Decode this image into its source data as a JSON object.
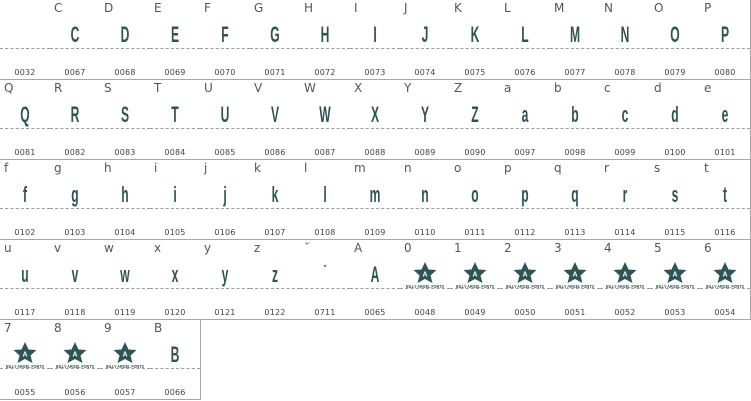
{
  "cells": [
    {
      "label": "",
      "glyph": "",
      "code": "0032",
      "kind": "char"
    },
    {
      "label": "C",
      "glyph": "C",
      "code": "0067",
      "kind": "char"
    },
    {
      "label": "D",
      "glyph": "D",
      "code": "0068",
      "kind": "char"
    },
    {
      "label": "E",
      "glyph": "E",
      "code": "0069",
      "kind": "char"
    },
    {
      "label": "F",
      "glyph": "F",
      "code": "0070",
      "kind": "char"
    },
    {
      "label": "G",
      "glyph": "G",
      "code": "0071",
      "kind": "char"
    },
    {
      "label": "H",
      "glyph": "H",
      "code": "0072",
      "kind": "char"
    },
    {
      "label": "I",
      "glyph": "I",
      "code": "0073",
      "kind": "char"
    },
    {
      "label": "J",
      "glyph": "J",
      "code": "0074",
      "kind": "char"
    },
    {
      "label": "K",
      "glyph": "K",
      "code": "0075",
      "kind": "char"
    },
    {
      "label": "L",
      "glyph": "L",
      "code": "0076",
      "kind": "char"
    },
    {
      "label": "M",
      "glyph": "M",
      "code": "0077",
      "kind": "char"
    },
    {
      "label": "N",
      "glyph": "N",
      "code": "0078",
      "kind": "char"
    },
    {
      "label": "O",
      "glyph": "O",
      "code": "0079",
      "kind": "char"
    },
    {
      "label": "P",
      "glyph": "P",
      "code": "0080",
      "kind": "char"
    },
    {
      "label": "Q",
      "glyph": "Q",
      "code": "0081",
      "kind": "char"
    },
    {
      "label": "R",
      "glyph": "R",
      "code": "0082",
      "kind": "char"
    },
    {
      "label": "S",
      "glyph": "S",
      "code": "0083",
      "kind": "char"
    },
    {
      "label": "T",
      "glyph": "T",
      "code": "0084",
      "kind": "char"
    },
    {
      "label": "U",
      "glyph": "U",
      "code": "0085",
      "kind": "char"
    },
    {
      "label": "V",
      "glyph": "V",
      "code": "0086",
      "kind": "char"
    },
    {
      "label": "W",
      "glyph": "W",
      "code": "0087",
      "kind": "char"
    },
    {
      "label": "X",
      "glyph": "X",
      "code": "0088",
      "kind": "char"
    },
    {
      "label": "Y",
      "glyph": "Y",
      "code": "0089",
      "kind": "char"
    },
    {
      "label": "Z",
      "glyph": "Z",
      "code": "0090",
      "kind": "char"
    },
    {
      "label": "a",
      "glyph": "a",
      "code": "0097",
      "kind": "char"
    },
    {
      "label": "b",
      "glyph": "b",
      "code": "0098",
      "kind": "char"
    },
    {
      "label": "c",
      "glyph": "c",
      "code": "0099",
      "kind": "char"
    },
    {
      "label": "d",
      "glyph": "d",
      "code": "0100",
      "kind": "char"
    },
    {
      "label": "e",
      "glyph": "e",
      "code": "0101",
      "kind": "char"
    },
    {
      "label": "f",
      "glyph": "f",
      "code": "0102",
      "kind": "char"
    },
    {
      "label": "g",
      "glyph": "g",
      "code": "0103",
      "kind": "char"
    },
    {
      "label": "h",
      "glyph": "h",
      "code": "0104",
      "kind": "char"
    },
    {
      "label": "i",
      "glyph": "i",
      "code": "0105",
      "kind": "char"
    },
    {
      "label": "j",
      "glyph": "j",
      "code": "0106",
      "kind": "char"
    },
    {
      "label": "k",
      "glyph": "k",
      "code": "0107",
      "kind": "char"
    },
    {
      "label": "l",
      "glyph": "l",
      "code": "0108",
      "kind": "char"
    },
    {
      "label": "m",
      "glyph": "m",
      "code": "0109",
      "kind": "char"
    },
    {
      "label": "n",
      "glyph": "n",
      "code": "0110",
      "kind": "char"
    },
    {
      "label": "o",
      "glyph": "o",
      "code": "0111",
      "kind": "char"
    },
    {
      "label": "p",
      "glyph": "p",
      "code": "0112",
      "kind": "char"
    },
    {
      "label": "q",
      "glyph": "q",
      "code": "0113",
      "kind": "char"
    },
    {
      "label": "r",
      "glyph": "r",
      "code": "0114",
      "kind": "char"
    },
    {
      "label": "s",
      "glyph": "s",
      "code": "0115",
      "kind": "char"
    },
    {
      "label": "t",
      "glyph": "t",
      "code": "0116",
      "kind": "char"
    },
    {
      "label": "u",
      "glyph": "u",
      "code": "0117",
      "kind": "char"
    },
    {
      "label": "v",
      "glyph": "v",
      "code": "0118",
      "kind": "char"
    },
    {
      "label": "w",
      "glyph": "w",
      "code": "0119",
      "kind": "char"
    },
    {
      "label": "x",
      "glyph": "x",
      "code": "0120",
      "kind": "char"
    },
    {
      "label": "y",
      "glyph": "y",
      "code": "0121",
      "kind": "char"
    },
    {
      "label": "z",
      "glyph": "z",
      "code": "0122",
      "kind": "char"
    },
    {
      "label": "ˇ",
      "glyph": "ˇ",
      "code": "0711",
      "kind": "char"
    },
    {
      "label": "A",
      "glyph": "A",
      "code": "0065",
      "kind": "char"
    },
    {
      "label": "0",
      "glyph": "BILLY ARGEL FONTS",
      "code": "0048",
      "kind": "logo"
    },
    {
      "label": "1",
      "glyph": "BILLY ARGEL FONTS",
      "code": "0049",
      "kind": "logo"
    },
    {
      "label": "2",
      "glyph": "BILLY ARGEL FONTS",
      "code": "0050",
      "kind": "logo"
    },
    {
      "label": "3",
      "glyph": "BILLY ARGEL FONTS",
      "code": "0051",
      "kind": "logo"
    },
    {
      "label": "4",
      "glyph": "BILLY ARGEL FONTS",
      "code": "0052",
      "kind": "logo"
    },
    {
      "label": "5",
      "glyph": "BILLY ARGEL FONTS",
      "code": "0053",
      "kind": "logo"
    },
    {
      "label": "6",
      "glyph": "BILLY ARGEL FONTS",
      "code": "0054",
      "kind": "logo"
    },
    {
      "label": "7",
      "glyph": "BILLY ARGEL FONTS",
      "code": "0055",
      "kind": "logo"
    },
    {
      "label": "8",
      "glyph": "BILLY ARGEL FONTS",
      "code": "0056",
      "kind": "logo"
    },
    {
      "label": "9",
      "glyph": "BILLY ARGEL FONTS",
      "code": "0057",
      "kind": "logo"
    },
    {
      "label": "B",
      "glyph": "B",
      "code": "0066",
      "kind": "char"
    }
  ],
  "colors": {
    "glyph": "#2d5555",
    "border": "#a8a8a8",
    "label": "#555555"
  }
}
